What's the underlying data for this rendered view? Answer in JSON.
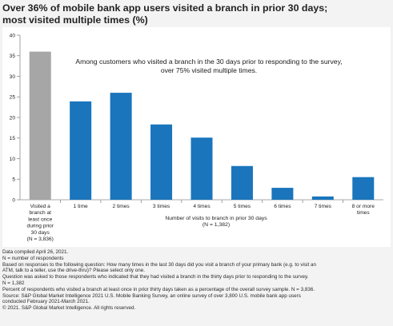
{
  "title": {
    "line1": "Over 36% of mobile bank app users visited a branch in prior 30 days;",
    "line2": "most visited multiple times (%)"
  },
  "colors": {
    "primary_bar": "#1a75bc",
    "reference_bar": "#a6a6a6",
    "axis": "#8c8c8c"
  },
  "chart_data": {
    "type": "bar",
    "title": "Over 36% of mobile bank app users visited a branch in prior 30 days; most visited multiple times (%)",
    "categories": [
      [
        "Visited a",
        "branch at",
        "least once",
        "during prior",
        "30 days",
        "(N = 3,836)"
      ],
      [
        "1 time"
      ],
      [
        "2 times"
      ],
      [
        "3 times"
      ],
      [
        "4 times"
      ],
      [
        "5 times"
      ],
      [
        "6 times"
      ],
      [
        "7 times"
      ],
      [
        "8 or more",
        "times"
      ]
    ],
    "values": [
      36.0,
      23.9,
      26.0,
      18.3,
      15.1,
      8.2,
      2.9,
      0.8,
      5.5
    ],
    "bar_colors": [
      "reference",
      "primary",
      "primary",
      "primary",
      "primary",
      "primary",
      "primary",
      "primary",
      "primary"
    ],
    "xlabel": [
      "Number of visits to branch in prior 30 days",
      "(N = 1,382)"
    ],
    "ylabel": "",
    "ylim": [
      0,
      40
    ],
    "yticks": [
      0,
      5,
      10,
      15,
      20,
      25,
      30,
      35,
      40
    ],
    "grid": false,
    "annotation": [
      "Among customers who visited a branch in the 30 days prior to responding to the survey,",
      "over 75% visited multiple times."
    ]
  },
  "footnotes": [
    "Data compiled April 26, 2021.",
    "N = number of respondents",
    "Based on responses to the following question: How many times in the last 30 days did you visit a branch of your primary bank (e.g. to visit an",
    "ATM, talk to a teller, use the drive-thru)? Please select only one.",
    "Question was asked to those respondents who indicated that they had visited a branch in the thirty days prior to responding to the survey.",
    "N = 1,382",
    "Percent of respondents who visited a branch at least once in prior thirty days taken as a percentage of the overall survey sample. N = 3,836.",
    "Source: S&P Global Market Intelligence 2021 U.S. Mobile Banking Survey, an online survey of over 3,800 U.S. mobile bank app users",
    "conducted February 2021-March 2021.",
    "© 2021. S&P Global Market Intelligence. All rights reserved."
  ]
}
